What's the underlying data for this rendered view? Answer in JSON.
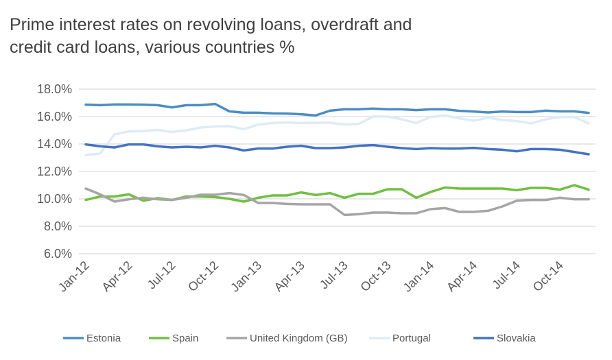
{
  "chart_data": {
    "type": "line",
    "title_line1": "Prime interest rates on revolving loans, overdraft and",
    "title_line2": "credit card loans, various countries %",
    "xlabel": "",
    "ylabel": "",
    "ylim": [
      6,
      18
    ],
    "y_ticks": [
      "6.0%",
      "8.0%",
      "10.0%",
      "12.0%",
      "14.0%",
      "16.0%",
      "18.0%"
    ],
    "y_tick_values": [
      6,
      8,
      10,
      12,
      14,
      16,
      18
    ],
    "x_tick_labels": [
      "Jan-12",
      "Apr-12",
      "Jul-12",
      "Oct-12",
      "Jan-13",
      "Apr-13",
      "Jul-13",
      "Oct-13",
      "Jan-14",
      "Apr-14",
      "Jul-14",
      "Oct-14"
    ],
    "x_tick_every": 3,
    "n_points": 36,
    "grid": true,
    "legend_position": "bottom",
    "series": [
      {
        "name": "Estonia",
        "color": "#4a8dc4",
        "values": [
          16.87,
          16.83,
          16.88,
          16.88,
          16.87,
          16.83,
          16.67,
          16.83,
          16.83,
          16.92,
          16.38,
          16.28,
          16.28,
          16.23,
          16.22,
          16.17,
          16.08,
          16.43,
          16.53,
          16.53,
          16.58,
          16.53,
          16.53,
          16.47,
          16.53,
          16.53,
          16.42,
          16.37,
          16.3,
          16.37,
          16.33,
          16.33,
          16.43,
          16.38,
          16.38,
          16.27
        ]
      },
      {
        "name": "Spain",
        "color": "#70bf41",
        "values": [
          9.92,
          10.17,
          10.17,
          10.33,
          9.87,
          10.05,
          9.92,
          10.17,
          10.17,
          10.13,
          10.0,
          9.8,
          10.08,
          10.25,
          10.25,
          10.47,
          10.28,
          10.42,
          10.08,
          10.37,
          10.37,
          10.7,
          10.7,
          10.08,
          10.5,
          10.83,
          10.75,
          10.75,
          10.75,
          10.75,
          10.63,
          10.8,
          10.8,
          10.67,
          11.0,
          10.67
        ]
      },
      {
        "name": "United Kingdom (GB)",
        "color": "#a5a5a5",
        "values": [
          10.75,
          10.33,
          9.8,
          9.97,
          10.08,
          9.97,
          9.92,
          10.08,
          10.3,
          10.3,
          10.42,
          10.28,
          9.7,
          9.7,
          9.63,
          9.6,
          9.6,
          9.6,
          8.83,
          8.88,
          9.0,
          9.0,
          8.95,
          8.95,
          9.25,
          9.33,
          9.05,
          9.05,
          9.13,
          9.45,
          9.87,
          9.92,
          9.92,
          10.08,
          9.97,
          9.97
        ]
      },
      {
        "name": "Portugal",
        "color": "#deebf7",
        "values": [
          13.2,
          13.3,
          14.7,
          14.92,
          14.95,
          15.03,
          14.87,
          15.0,
          15.2,
          15.28,
          15.3,
          15.08,
          15.42,
          15.53,
          15.57,
          15.53,
          15.55,
          15.55,
          15.42,
          15.47,
          16.0,
          16.0,
          15.8,
          15.53,
          15.97,
          16.08,
          15.87,
          15.7,
          15.92,
          15.75,
          15.67,
          15.5,
          15.8,
          15.97,
          15.97,
          15.5
        ]
      },
      {
        "name": "Slovakia",
        "color": "#4472c4",
        "values": [
          13.97,
          13.83,
          13.75,
          13.97,
          13.97,
          13.83,
          13.75,
          13.8,
          13.75,
          13.87,
          13.75,
          13.53,
          13.67,
          13.67,
          13.8,
          13.87,
          13.7,
          13.7,
          13.75,
          13.87,
          13.92,
          13.8,
          13.7,
          13.63,
          13.7,
          13.67,
          13.67,
          13.72,
          13.63,
          13.58,
          13.47,
          13.63,
          13.63,
          13.58,
          13.42,
          13.25
        ]
      }
    ]
  }
}
